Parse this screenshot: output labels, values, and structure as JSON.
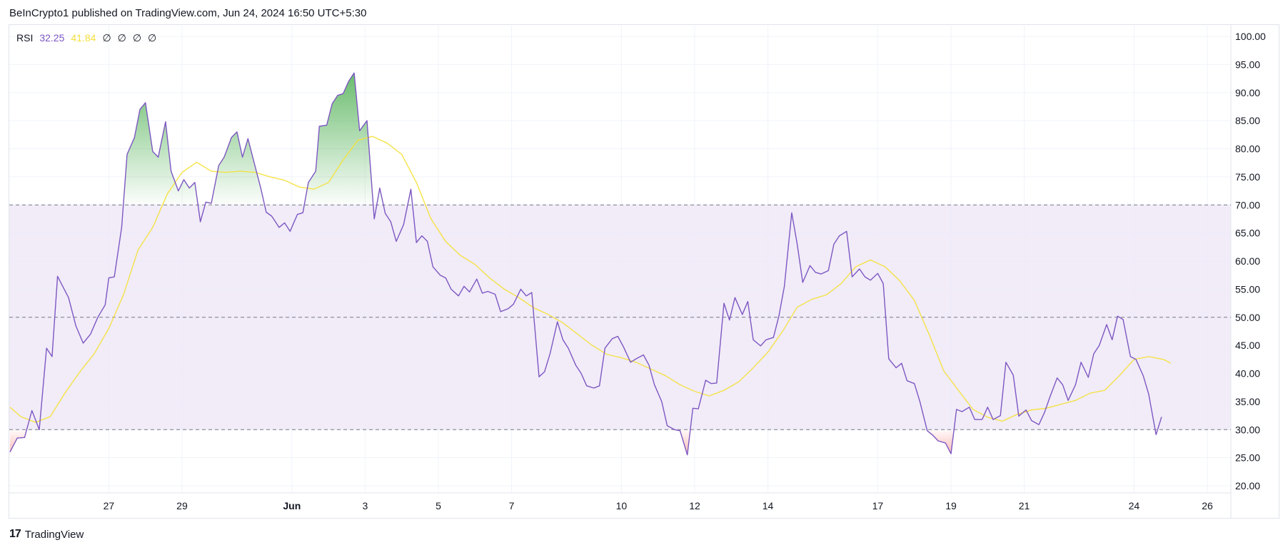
{
  "header": {
    "attribution": "BeInCrypto1 published on TradingView.com, Jun 24, 2024 16:50 UTC+5:30"
  },
  "legend": {
    "name": "RSI",
    "rsi_value": "32.25",
    "ma_value": "41.84",
    "na_values": [
      "∅",
      "∅",
      "∅",
      "∅"
    ]
  },
  "footer": {
    "brand": "TradingView",
    "logo_glyph": "17"
  },
  "colors": {
    "rsi": "#7e57c2",
    "ma": "#f5e13c",
    "band": "#ede7f6",
    "overbought_fill": "#4caf50",
    "oversold_fill": "#f44336",
    "grid": "#f0f3fa",
    "guide": "#787b86"
  },
  "chart_data": {
    "type": "line",
    "ylim": [
      20,
      100
    ],
    "y_ticks": [
      "20.00",
      "25.00",
      "30.00",
      "35.00",
      "40.00",
      "45.00",
      "50.00",
      "55.00",
      "60.00",
      "65.00",
      "70.00",
      "75.00",
      "80.00",
      "85.00",
      "90.00",
      "95.00",
      "100.00"
    ],
    "x_tick_labels": [
      {
        "label": "27",
        "day": 27.0
      },
      {
        "label": "29",
        "day": 29.0
      },
      {
        "label": "Jun",
        "day": 32.0
      },
      {
        "label": "3",
        "day": 34.0
      },
      {
        "label": "5",
        "day": 36.0
      },
      {
        "label": "7",
        "day": 38.0
      },
      {
        "label": "10",
        "day": 41.0
      },
      {
        "label": "12",
        "day": 43.0
      },
      {
        "label": "14",
        "day": 45.0
      },
      {
        "label": "17",
        "day": 48.0
      },
      {
        "label": "19",
        "day": 50.0
      },
      {
        "label": "21",
        "day": 52.0
      },
      {
        "label": "24",
        "day": 55.0
      },
      {
        "label": "26",
        "day": 57.0
      }
    ],
    "bands": {
      "upper": 70,
      "middle": 50,
      "lower": 30
    },
    "series": [
      {
        "name": "RSI",
        "points": [
          [
            24.3,
            26
          ],
          [
            24.5,
            28.5
          ],
          [
            24.7,
            28.6
          ],
          [
            24.9,
            33.4
          ],
          [
            25.1,
            30
          ],
          [
            25.3,
            44.5
          ],
          [
            25.45,
            43
          ],
          [
            25.6,
            57.3
          ],
          [
            25.9,
            53.5
          ],
          [
            26.1,
            48.5
          ],
          [
            26.3,
            45.4
          ],
          [
            26.5,
            47
          ],
          [
            26.7,
            50
          ],
          [
            26.9,
            52.2
          ],
          [
            27.0,
            57
          ],
          [
            27.15,
            57.2
          ],
          [
            27.35,
            66
          ],
          [
            27.5,
            79
          ],
          [
            27.7,
            82
          ],
          [
            27.85,
            87
          ],
          [
            28.0,
            88.2
          ],
          [
            28.2,
            79.5
          ],
          [
            28.35,
            78.5
          ],
          [
            28.55,
            84.8
          ],
          [
            28.7,
            76
          ],
          [
            28.9,
            72.5
          ],
          [
            29.05,
            74.5
          ],
          [
            29.2,
            73
          ],
          [
            29.35,
            74
          ],
          [
            29.5,
            67
          ],
          [
            29.65,
            70.5
          ],
          [
            29.8,
            70.3
          ],
          [
            30.0,
            77
          ],
          [
            30.15,
            78.5
          ],
          [
            30.35,
            82
          ],
          [
            30.5,
            83
          ],
          [
            30.65,
            78.5
          ],
          [
            30.8,
            81.8
          ],
          [
            30.95,
            78
          ],
          [
            31.15,
            73
          ],
          [
            31.3,
            68.7
          ],
          [
            31.45,
            68
          ],
          [
            31.65,
            66
          ],
          [
            31.8,
            66.8
          ],
          [
            31.95,
            65.3
          ],
          [
            32.15,
            68.3
          ],
          [
            32.3,
            68.6
          ],
          [
            32.45,
            74
          ],
          [
            32.65,
            76
          ],
          [
            32.75,
            84
          ],
          [
            32.95,
            84.2
          ],
          [
            33.1,
            88
          ],
          [
            33.25,
            89.5
          ],
          [
            33.4,
            89.8
          ],
          [
            33.55,
            92
          ],
          [
            33.7,
            93.5
          ],
          [
            33.85,
            83.2
          ],
          [
            34.05,
            85
          ],
          [
            34.25,
            67.5
          ],
          [
            34.4,
            73
          ],
          [
            34.55,
            68.5
          ],
          [
            34.7,
            67
          ],
          [
            34.85,
            63.5
          ],
          [
            35.05,
            66.5
          ],
          [
            35.25,
            72.8
          ],
          [
            35.4,
            63.3
          ],
          [
            35.55,
            64.5
          ],
          [
            35.7,
            63.5
          ],
          [
            35.85,
            59
          ],
          [
            36.05,
            57.5
          ],
          [
            36.2,
            57
          ],
          [
            36.35,
            55
          ],
          [
            36.55,
            53.8
          ],
          [
            36.7,
            55.5
          ],
          [
            36.85,
            54.5
          ],
          [
            37.05,
            56.8
          ],
          [
            37.2,
            54.3
          ],
          [
            37.35,
            54.6
          ],
          [
            37.55,
            54.1
          ],
          [
            37.7,
            51
          ],
          [
            37.9,
            51.5
          ],
          [
            38.05,
            52.3
          ],
          [
            38.25,
            55
          ],
          [
            38.4,
            53.8
          ],
          [
            38.55,
            54.4
          ],
          [
            38.75,
            39.4
          ],
          [
            38.9,
            40.3
          ],
          [
            39.05,
            43.5
          ],
          [
            39.25,
            49.2
          ],
          [
            39.4,
            46
          ],
          [
            39.55,
            44.5
          ],
          [
            39.75,
            41.5
          ],
          [
            39.9,
            40
          ],
          [
            40.05,
            37.8
          ],
          [
            40.25,
            37.4
          ],
          [
            40.4,
            37.8
          ],
          [
            40.55,
            44.5
          ],
          [
            40.75,
            46.2
          ],
          [
            40.9,
            46.6
          ],
          [
            41.05,
            44.8
          ],
          [
            41.25,
            42
          ],
          [
            41.4,
            42.6
          ],
          [
            41.6,
            43.3
          ],
          [
            41.75,
            41.5
          ],
          [
            41.9,
            38
          ],
          [
            42.1,
            35
          ],
          [
            42.25,
            30.7
          ],
          [
            42.45,
            30
          ],
          [
            42.6,
            29.8
          ],
          [
            42.8,
            25.5
          ],
          [
            42.95,
            33.8
          ],
          [
            43.1,
            33.7
          ],
          [
            43.3,
            38.8
          ],
          [
            43.45,
            38.2
          ],
          [
            43.6,
            38.3
          ],
          [
            43.8,
            52.5
          ],
          [
            43.95,
            49.5
          ],
          [
            44.1,
            53.5
          ],
          [
            44.3,
            50.5
          ],
          [
            44.45,
            52.8
          ],
          [
            44.6,
            46
          ],
          [
            44.8,
            44.9
          ],
          [
            44.95,
            46
          ],
          [
            45.15,
            46.4
          ],
          [
            45.3,
            50.2
          ],
          [
            45.45,
            55.5
          ],
          [
            45.65,
            68.6
          ],
          [
            45.8,
            63
          ],
          [
            45.95,
            56.2
          ],
          [
            46.15,
            59.2
          ],
          [
            46.3,
            58
          ],
          [
            46.45,
            57.7
          ],
          [
            46.65,
            58.3
          ],
          [
            46.8,
            63
          ],
          [
            46.95,
            64.5
          ],
          [
            47.15,
            65.3
          ],
          [
            47.3,
            57.2
          ],
          [
            47.5,
            58.6
          ],
          [
            47.65,
            57.2
          ],
          [
            47.8,
            56.6
          ],
          [
            48.0,
            57.8
          ],
          [
            48.15,
            56
          ],
          [
            48.3,
            42.6
          ],
          [
            48.5,
            41
          ],
          [
            48.65,
            41.8
          ],
          [
            48.8,
            38.7
          ],
          [
            49.0,
            38.2
          ],
          [
            49.15,
            35
          ],
          [
            49.35,
            29.8
          ],
          [
            49.5,
            29
          ],
          [
            49.65,
            28
          ],
          [
            49.85,
            27.6
          ],
          [
            50.0,
            25.7
          ],
          [
            50.15,
            33.6
          ],
          [
            50.3,
            33.2
          ],
          [
            50.5,
            34
          ],
          [
            50.65,
            31.8
          ],
          [
            50.85,
            31.8
          ],
          [
            51.0,
            34
          ],
          [
            51.15,
            31.8
          ],
          [
            51.35,
            32.5
          ],
          [
            51.5,
            42
          ],
          [
            51.7,
            39.7
          ],
          [
            51.85,
            32.4
          ],
          [
            52.05,
            33.5
          ],
          [
            52.2,
            31.6
          ],
          [
            52.4,
            30.9
          ],
          [
            52.55,
            33
          ],
          [
            52.7,
            35.8
          ],
          [
            52.9,
            39.2
          ],
          [
            53.05,
            38
          ],
          [
            53.2,
            35.2
          ],
          [
            53.4,
            38
          ],
          [
            53.55,
            42
          ],
          [
            53.75,
            39.3
          ],
          [
            53.9,
            43.5
          ],
          [
            54.05,
            45
          ],
          [
            54.25,
            48.7
          ],
          [
            54.4,
            46
          ],
          [
            54.55,
            50.2
          ],
          [
            54.7,
            49.6
          ],
          [
            54.9,
            43
          ],
          [
            55.05,
            42.5
          ],
          [
            55.25,
            39.6
          ],
          [
            55.4,
            36.3
          ],
          [
            55.6,
            29.1
          ],
          [
            55.75,
            32.25
          ]
        ]
      },
      {
        "name": "RSI-based MA",
        "points": [
          [
            24.3,
            34
          ],
          [
            24.6,
            32.3
          ],
          [
            25.0,
            31.3
          ],
          [
            25.4,
            32.3
          ],
          [
            25.8,
            36.5
          ],
          [
            26.2,
            40.2
          ],
          [
            26.6,
            43.5
          ],
          [
            27.0,
            48
          ],
          [
            27.4,
            54
          ],
          [
            27.8,
            62
          ],
          [
            28.2,
            66
          ],
          [
            28.6,
            72
          ],
          [
            29.0,
            75.8
          ],
          [
            29.4,
            77.6
          ],
          [
            29.8,
            76
          ],
          [
            30.2,
            75.8
          ],
          [
            30.6,
            76
          ],
          [
            31.0,
            75.8
          ],
          [
            31.4,
            75
          ],
          [
            31.8,
            74.4
          ],
          [
            32.2,
            73.2
          ],
          [
            32.6,
            72.8
          ],
          [
            33.0,
            74
          ],
          [
            33.4,
            78
          ],
          [
            33.8,
            81.5
          ],
          [
            34.2,
            82.2
          ],
          [
            34.6,
            81
          ],
          [
            35.0,
            79
          ],
          [
            35.4,
            74
          ],
          [
            35.8,
            67.5
          ],
          [
            36.2,
            63.5
          ],
          [
            36.6,
            61
          ],
          [
            37.0,
            59.4
          ],
          [
            37.4,
            57
          ],
          [
            37.8,
            55
          ],
          [
            38.2,
            53.5
          ],
          [
            38.6,
            51.7
          ],
          [
            39.0,
            50.5
          ],
          [
            39.4,
            49
          ],
          [
            39.8,
            47
          ],
          [
            40.2,
            45
          ],
          [
            40.6,
            43.4
          ],
          [
            41.0,
            42.8
          ],
          [
            41.4,
            42
          ],
          [
            41.8,
            40.8
          ],
          [
            42.2,
            39.6
          ],
          [
            42.6,
            38
          ],
          [
            43.0,
            36.8
          ],
          [
            43.4,
            36
          ],
          [
            43.8,
            37
          ],
          [
            44.2,
            38.5
          ],
          [
            44.6,
            41
          ],
          [
            45.0,
            43.8
          ],
          [
            45.4,
            47.5
          ],
          [
            45.8,
            51.8
          ],
          [
            46.2,
            53.2
          ],
          [
            46.6,
            54
          ],
          [
            47.0,
            56
          ],
          [
            47.4,
            59
          ],
          [
            47.8,
            60.2
          ],
          [
            48.2,
            59
          ],
          [
            48.6,
            56.5
          ],
          [
            49.0,
            53
          ],
          [
            49.4,
            47
          ],
          [
            49.8,
            40.5
          ],
          [
            50.2,
            37
          ],
          [
            50.6,
            33.6
          ],
          [
            51.0,
            32.2
          ],
          [
            51.4,
            31.5
          ],
          [
            51.8,
            32.7
          ],
          [
            52.2,
            33.5
          ],
          [
            52.6,
            33.8
          ],
          [
            53.0,
            34.5
          ],
          [
            53.4,
            35.2
          ],
          [
            53.8,
            36.5
          ],
          [
            54.2,
            37
          ],
          [
            54.6,
            39.6
          ],
          [
            55.0,
            42.5
          ],
          [
            55.4,
            43
          ],
          [
            55.8,
            42.5
          ],
          [
            56.0,
            41.84
          ]
        ]
      }
    ]
  }
}
